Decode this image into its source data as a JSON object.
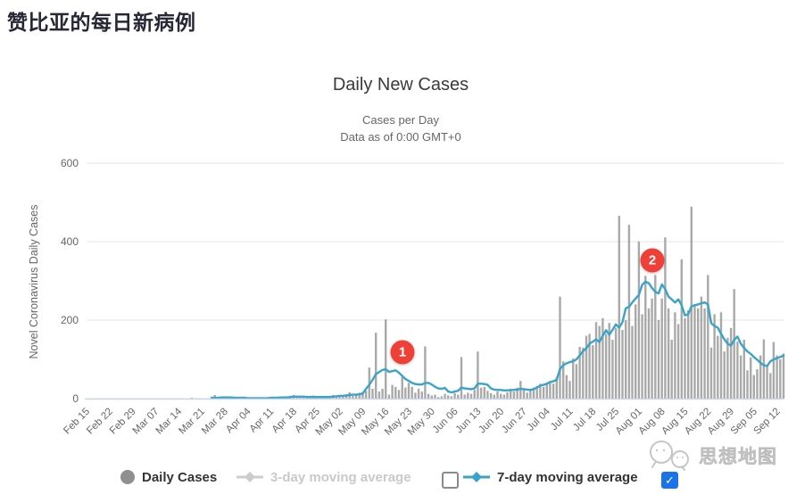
{
  "page": {
    "title": "赞比亚的每日新病例"
  },
  "icons": {
    "check": "✓"
  },
  "legend": {
    "daily_cases": {
      "label": "Daily Cases",
      "marker": "circle",
      "marker_color": "#8f8f8f",
      "active": true
    },
    "ma3": {
      "label": "3-day moving average",
      "marker": "line-diamond",
      "marker_color": "#cccccc",
      "active": false,
      "checkbox_checked": false
    },
    "ma7": {
      "label": "7-day moving average",
      "marker": "line-diamond",
      "marker_color": "#39a3c9",
      "active": true,
      "checkbox_checked": true
    }
  },
  "watermark": {
    "text": "思想地图"
  },
  "annotations": [
    {
      "label": "1",
      "day_index": 96,
      "value": 118,
      "color": "#ee4037"
    },
    {
      "label": "2",
      "day_index": 172,
      "value": 352,
      "color": "#ee4037"
    }
  ],
  "chart_data": {
    "type": "bar",
    "title": "Daily New Cases",
    "subtitle_1": "Cases per Day",
    "subtitle_2": "Data as of 0:00 GMT+0",
    "ylabel": "Novel Coronavirus Daily Cases",
    "xlabel": "",
    "ylim": [
      0,
      600
    ],
    "y_ticks": [
      0,
      200,
      400,
      600
    ],
    "grid": true,
    "legend_position": "bottom",
    "x_start": "Feb 15",
    "x_end": "Sep 14",
    "x_tick_interval_days": 7,
    "x_tick_labels": [
      "Feb 15",
      "Feb 22",
      "Feb 29",
      "Mar 07",
      "Mar 14",
      "Mar 21",
      "Mar 28",
      "Apr 04",
      "Apr 11",
      "Apr 18",
      "Apr 25",
      "May 02",
      "May 09",
      "May 16",
      "May 23",
      "May 30",
      "Jun 06",
      "Jun 13",
      "Jun 20",
      "Jun 27",
      "Jul 04",
      "Jul 11",
      "Jul 18",
      "Jul 25",
      "Aug 01",
      "Aug 08",
      "Aug 15",
      "Aug 22",
      "Aug 29",
      "Sep 05",
      "Sep 12"
    ],
    "colors": {
      "bars": "#a9a9a9",
      "ma7_line": "#39a3c9",
      "grid": "#e6e6e6",
      "axis_line": "#ccd6eb",
      "tick_text": "#666666"
    },
    "series": [
      {
        "name": "Daily Cases",
        "type": "bar",
        "color": "#a9a9a9",
        "values": [
          0,
          0,
          0,
          0,
          0,
          0,
          0,
          0,
          0,
          0,
          0,
          0,
          0,
          0,
          0,
          0,
          0,
          0,
          0,
          0,
          0,
          0,
          0,
          0,
          0,
          0,
          0,
          0,
          0,
          0,
          0,
          0,
          2,
          0,
          1,
          0,
          0,
          0,
          0,
          9,
          2,
          2,
          6,
          1,
          5,
          0,
          3,
          3,
          2,
          0,
          0,
          1,
          0,
          1,
          0,
          1,
          2,
          5,
          2,
          4,
          3,
          4,
          5,
          9,
          4,
          4,
          5,
          4,
          2,
          8,
          3,
          4,
          2,
          7,
          3,
          9,
          6,
          7,
          9,
          6,
          16,
          7,
          9,
          15,
          17,
          20,
          79,
          25,
          168,
          18,
          25,
          202,
          10,
          35,
          30,
          22,
          55,
          28,
          40,
          30,
          15,
          25,
          18,
          133,
          12,
          8,
          10,
          4,
          6,
          12,
          8,
          6,
          14,
          10,
          106,
          10,
          15,
          12,
          22,
          120,
          28,
          30,
          20,
          14,
          10,
          18,
          12,
          10,
          16,
          22,
          18,
          28,
          45,
          25,
          15,
          22,
          28,
          32,
          38,
          30,
          40,
          45,
          38,
          55,
          260,
          95,
          60,
          45,
          102,
          88,
          132,
          130,
          160,
          165,
          136,
          195,
          185,
          205,
          165,
          193,
          150,
          180,
          466,
          175,
          200,
          443,
          185,
          240,
          401,
          215,
          313,
          230,
          255,
          315,
          200,
          255,
          411,
          230,
          150,
          220,
          190,
          355,
          205,
          225,
          489,
          240,
          230,
          260,
          230,
          315,
          130,
          215,
          160,
          220,
          120,
          155,
          180,
          279,
          145,
          110,
          150,
          72,
          105,
          60,
          75,
          110,
          151,
          85,
          65,
          144,
          110,
          100,
          115
        ]
      },
      {
        "name": "7-day moving average",
        "type": "line",
        "color": "#39a3c9",
        "values": [
          null,
          null,
          null,
          null,
          null,
          null,
          null,
          null,
          null,
          null,
          null,
          null,
          null,
          null,
          null,
          null,
          null,
          null,
          null,
          null,
          null,
          null,
          null,
          null,
          null,
          null,
          null,
          null,
          null,
          null,
          null,
          null,
          null,
          null,
          null,
          null,
          null,
          null,
          2,
          2,
          2,
          3,
          3,
          3,
          3,
          2,
          2,
          2,
          2,
          1,
          1,
          1,
          1,
          1,
          1,
          1,
          2,
          2,
          2,
          3,
          3,
          3,
          4,
          5,
          5,
          5,
          5,
          4,
          4,
          4,
          4,
          4,
          4,
          4,
          4,
          5,
          6,
          7,
          7,
          8,
          9,
          10,
          10,
          11,
          13,
          25,
          35,
          48,
          62,
          68,
          73,
          75,
          68,
          70,
          72,
          66,
          58,
          50,
          45,
          40,
          37,
          36,
          36,
          40,
          40,
          36,
          30,
          26,
          25,
          27,
          18,
          16,
          18,
          20,
          28,
          26,
          25,
          24,
          26,
          38,
          38,
          37,
          35,
          26,
          23,
          22,
          22,
          21,
          21,
          22,
          22,
          23,
          25,
          24,
          23,
          22,
          24,
          28,
          33,
          35,
          38,
          42,
          44,
          48,
          75,
          85,
          90,
          93,
          95,
          100,
          110,
          121,
          128,
          140,
          145,
          151,
          144,
          160,
          174,
          163,
          175,
          189,
          181,
          195,
          230,
          234,
          245,
          255,
          264,
          290,
          298,
          294,
          282,
          272,
          268,
          291,
          279,
          260,
          253,
          245,
          253,
          238,
          212,
          215,
          235,
          238,
          240,
          243,
          245,
          240,
          192,
          185,
          181,
          165,
          151,
          140,
          135,
          150,
          158,
          140,
          129,
          120,
          114,
          106,
          99,
          91,
          85,
          83,
          95,
          100,
          103,
          106,
          110
        ]
      }
    ]
  }
}
